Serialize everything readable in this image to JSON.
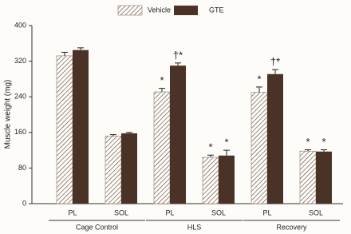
{
  "chart_data": {
    "type": "bar",
    "ylabel": "Muscle weight (mg)",
    "categories": [
      "PL",
      "SOL",
      "PL",
      "SOL",
      "PL",
      "SOL"
    ],
    "group_labels": [
      "Cage Control",
      "HLS",
      "Recovery"
    ],
    "series": [
      {
        "name": "Vehicle",
        "color": "#5a4032",
        "hatch": true,
        "values": [
          332,
          152,
          251,
          104,
          250,
          118
        ],
        "errors": [
          8,
          3,
          8,
          5,
          12,
          3
        ],
        "annotations": [
          null,
          null,
          "*",
          "*",
          "*",
          "*"
        ]
      },
      {
        "name": "GTE",
        "color": "#4a3226",
        "hatch": false,
        "values": [
          345,
          158,
          310,
          108,
          291,
          117
        ],
        "errors": [
          5,
          2,
          6,
          12,
          10,
          4
        ],
        "annotations": [
          null,
          null,
          "†*",
          "*",
          "†*",
          "*"
        ]
      }
    ],
    "ylim": [
      0,
      400
    ],
    "yticks": [
      0,
      80,
      160,
      240,
      320,
      400
    ]
  }
}
